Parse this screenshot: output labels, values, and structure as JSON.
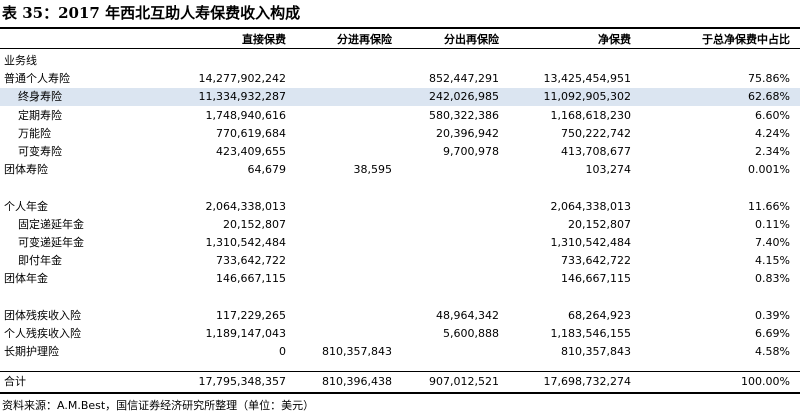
{
  "title": "表 35：2017 年西北互助人寿保费收入构成",
  "headers": [
    "直接保费",
    "分进再保险",
    "分出再保险",
    "净保费",
    "于总净保费中占比"
  ],
  "rows": [
    {
      "label": "业务线",
      "indent": 0,
      "values": [
        "",
        "",
        "",
        "",
        ""
      ]
    },
    {
      "label": "普通个人寿险",
      "indent": 0,
      "values": [
        "14,277,902,242",
        "",
        "852,447,291",
        "13,425,454,951",
        "75.86%"
      ]
    },
    {
      "label": "终身寿险",
      "indent": 1,
      "highlight": true,
      "values": [
        "11,334,932,287",
        "",
        "242,026,985",
        "11,092,905,302",
        "62.68%"
      ]
    },
    {
      "label": "定期寿险",
      "indent": 1,
      "values": [
        "1,748,940,616",
        "",
        "580,322,386",
        "1,168,618,230",
        "6.60%"
      ]
    },
    {
      "label": "万能险",
      "indent": 1,
      "values": [
        "770,619,684",
        "",
        "20,396,942",
        "750,222,742",
        "4.24%"
      ]
    },
    {
      "label": "可变寿险",
      "indent": 1,
      "values": [
        "423,409,655",
        "",
        "9,700,978",
        "413,708,677",
        "2.34%"
      ]
    },
    {
      "label": "团体寿险",
      "indent": 0,
      "values": [
        "64,679",
        "38,595",
        "",
        "103,274",
        "0.001%"
      ]
    },
    {
      "label": "",
      "indent": 0,
      "values": [
        "",
        "",
        "",
        "",
        ""
      ]
    },
    {
      "label": "个人年金",
      "indent": 0,
      "values": [
        "2,064,338,013",
        "",
        "",
        "2,064,338,013",
        "11.66%"
      ]
    },
    {
      "label": "固定递延年金",
      "indent": 1,
      "values": [
        "20,152,807",
        "",
        "",
        "20,152,807",
        "0.11%"
      ]
    },
    {
      "label": "可变递延年金",
      "indent": 1,
      "values": [
        "1,310,542,484",
        "",
        "",
        "1,310,542,484",
        "7.40%"
      ]
    },
    {
      "label": "即付年金",
      "indent": 1,
      "values": [
        "733,642,722",
        "",
        "",
        "733,642,722",
        "4.15%"
      ]
    },
    {
      "label": "团体年金",
      "indent": 0,
      "values": [
        "146,667,115",
        "",
        "",
        "146,667,115",
        "0.83%"
      ]
    },
    {
      "label": "",
      "indent": 0,
      "values": [
        "",
        "",
        "",
        "",
        ""
      ]
    },
    {
      "label": "团体残疾收入险",
      "indent": 0,
      "values": [
        "117,229,265",
        "",
        "48,964,342",
        "68,264,923",
        "0.39%"
      ]
    },
    {
      "label": "个人残疾收入险",
      "indent": 0,
      "values": [
        "1,189,147,043",
        "",
        "5,600,888",
        "1,183,546,155",
        "6.69%"
      ]
    },
    {
      "label": "长期护理险",
      "indent": 0,
      "values": [
        "0",
        "810,357,843",
        "",
        "810,357,843",
        "4.58%"
      ]
    }
  ],
  "total": {
    "label": "合计",
    "values": [
      "17,795,348,357",
      "810,396,438",
      "907,012,521",
      "17,698,732,274",
      "100.00%"
    ]
  },
  "source": "资料来源：A.M.Best，国信证券经济研究所整理（单位：美元）"
}
